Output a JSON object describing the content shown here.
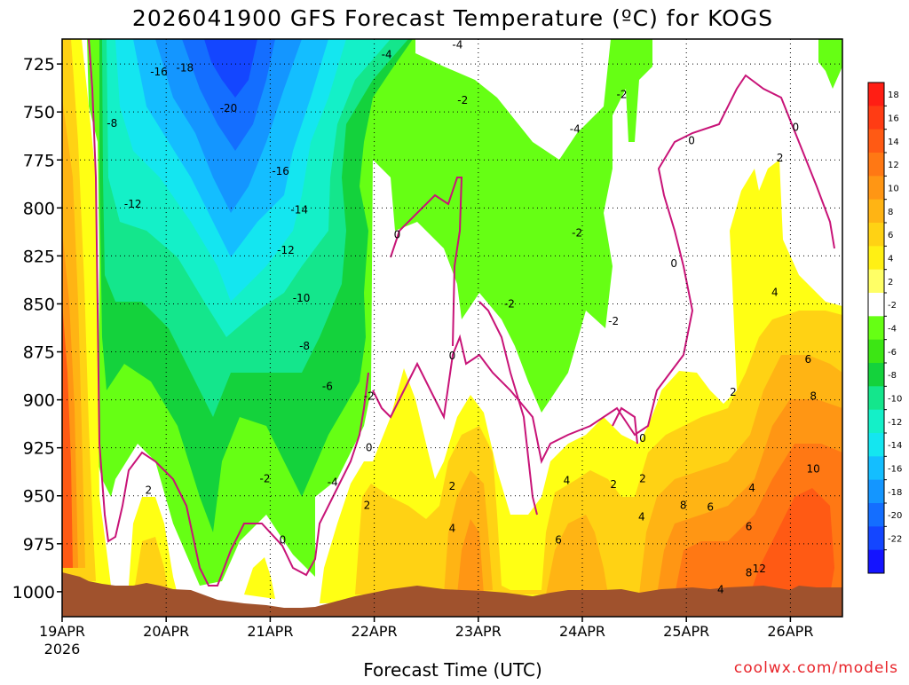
{
  "chart_data": {
    "type": "heatmap",
    "title": "2026041900 GFS Forecast Temperature (ºC) for KOGS",
    "xlabel": "Forecast Time (UTC)",
    "credit": "coolwx.com/models",
    "x_ticks": [
      "19APR",
      "20APR",
      "21APR",
      "22APR",
      "23APR",
      "24APR",
      "25APR",
      "26APR"
    ],
    "x_year": "2026",
    "y_ticks": [
      725,
      750,
      775,
      800,
      825,
      850,
      875,
      900,
      925,
      950,
      975,
      1000
    ],
    "y_axis": "pressure (hPa), decreasing upward",
    "ylim": [
      1013,
      712
    ],
    "colorbar_ticks": [
      18,
      16,
      14,
      12,
      10,
      8,
      6,
      4,
      2,
      -2,
      -4,
      -6,
      -8,
      -10,
      -12,
      -14,
      -16,
      -18,
      -20,
      -22
    ],
    "colorbar_colors": [
      "#ff1e14",
      "#ff3c14",
      "#ff5a14",
      "#ff7814",
      "#ff9614",
      "#ffb414",
      "#ffd214",
      "#fff014",
      "#ffff66",
      "#ffffff",
      "#66ff14",
      "#3ce614",
      "#14d23c",
      "#14e68c",
      "#14f0c8",
      "#14e6f0",
      "#14beff",
      "#1496ff",
      "#146eff",
      "#1446ff",
      "#1414ff"
    ],
    "time_axis_days": [
      0,
      1,
      2,
      3,
      4,
      5,
      6,
      7,
      7.5
    ],
    "grid": true,
    "contour_labels": [
      {
        "text": "-16",
        "t": 0.93,
        "p": 729
      },
      {
        "text": "-18",
        "t": 1.18,
        "p": 727
      },
      {
        "text": "-20",
        "t": 1.6,
        "p": 748
      },
      {
        "text": "-8",
        "t": 0.48,
        "p": 756
      },
      {
        "text": "-16",
        "t": 2.1,
        "p": 781
      },
      {
        "text": "-12",
        "t": 0.68,
        "p": 798
      },
      {
        "text": "-14",
        "t": 2.28,
        "p": 801
      },
      {
        "text": "-12",
        "t": 2.15,
        "p": 822
      },
      {
        "text": "-10",
        "t": 2.3,
        "p": 847
      },
      {
        "text": "-8",
        "t": 2.33,
        "p": 872
      },
      {
        "text": "-6",
        "t": 2.55,
        "p": 893
      },
      {
        "text": "-4",
        "t": 3.12,
        "p": 720
      },
      {
        "text": "-4",
        "t": 3.8,
        "p": 715
      },
      {
        "text": "-2",
        "t": 3.85,
        "p": 744
      },
      {
        "text": "-2",
        "t": 5.38,
        "p": 741
      },
      {
        "text": "-4",
        "t": 4.93,
        "p": 759
      },
      {
        "text": "0",
        "t": 6.05,
        "p": 765
      },
      {
        "text": "0",
        "t": 7.05,
        "p": 758
      },
      {
        "text": "2",
        "t": 6.9,
        "p": 774
      },
      {
        "text": "0",
        "t": 3.22,
        "p": 814
      },
      {
        "text": "-2",
        "t": 4.95,
        "p": 813
      },
      {
        "text": "0",
        "t": 5.88,
        "p": 829
      },
      {
        "text": "-2",
        "t": 4.3,
        "p": 850
      },
      {
        "text": "-2",
        "t": 5.3,
        "p": 859
      },
      {
        "text": "4",
        "t": 6.85,
        "p": 844
      },
      {
        "text": "0",
        "t": 3.75,
        "p": 877
      },
      {
        "text": "6",
        "t": 7.17,
        "p": 879
      },
      {
        "text": "-2",
        "t": 2.95,
        "p": 898
      },
      {
        "text": "2",
        "t": 6.45,
        "p": 896
      },
      {
        "text": "8",
        "t": 7.22,
        "p": 898
      },
      {
        "text": "0",
        "t": 5.58,
        "p": 920
      },
      {
        "text": "-2",
        "t": 1.95,
        "p": 941
      },
      {
        "text": "-4",
        "t": 2.6,
        "p": 943
      },
      {
        "text": "0",
        "t": 2.95,
        "p": 925
      },
      {
        "text": "2",
        "t": 0.83,
        "p": 947
      },
      {
        "text": "2",
        "t": 2.93,
        "p": 955
      },
      {
        "text": "2",
        "t": 3.75,
        "p": 945
      },
      {
        "text": "4",
        "t": 4.85,
        "p": 942
      },
      {
        "text": "2",
        "t": 5.3,
        "p": 944
      },
      {
        "text": "2",
        "t": 5.58,
        "p": 941
      },
      {
        "text": "10",
        "t": 7.22,
        "p": 936
      },
      {
        "text": "4",
        "t": 6.63,
        "p": 946
      },
      {
        "text": "8",
        "t": 5.97,
        "p": 955
      },
      {
        "text": "6",
        "t": 6.23,
        "p": 956
      },
      {
        "text": "4",
        "t": 5.57,
        "p": 961
      },
      {
        "text": "4",
        "t": 3.75,
        "p": 967
      },
      {
        "text": "6",
        "t": 4.77,
        "p": 973
      },
      {
        "text": "0",
        "t": 2.12,
        "p": 973
      },
      {
        "text": "6",
        "t": 6.6,
        "p": 966
      },
      {
        "text": "8",
        "t": 6.6,
        "p": 990
      },
      {
        "text": "12",
        "t": 6.7,
        "p": 988
      },
      {
        "text": "4",
        "t": 6.33,
        "p": 999
      }
    ]
  }
}
